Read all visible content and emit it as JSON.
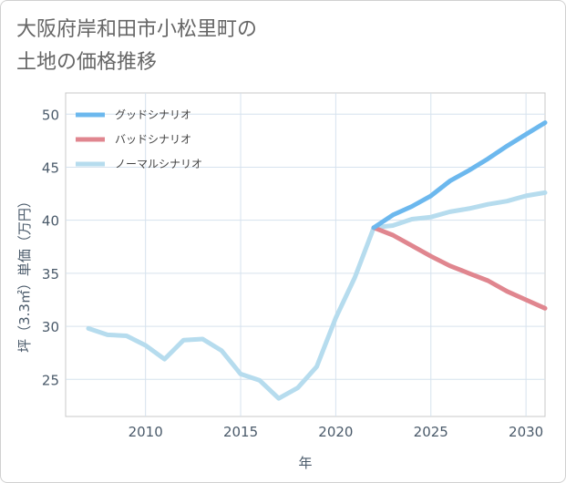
{
  "title": {
    "line1": "大阪府岸和田市小松里町の",
    "line2": "土地の価格推移"
  },
  "chart_data": {
    "type": "line",
    "title": "大阪府岸和田市小松里町の土地の価格推移",
    "xlabel": "年",
    "ylabel": "坪（3.3㎡）単価（万円）",
    "xlim": [
      2005.8,
      2031
    ],
    "ylim": [
      21.5,
      52
    ],
    "xticks": [
      2010,
      2015,
      2020,
      2025,
      2030
    ],
    "yticks": [
      25,
      30,
      35,
      40,
      45,
      50
    ],
    "grid": true,
    "legend_position": "top-left",
    "series": [
      {
        "name": "グッドシナリオ",
        "color": "#6cb8ee",
        "x": [
          2022,
          2023,
          2024,
          2025,
          2026,
          2027,
          2028,
          2029,
          2030,
          2031
        ],
        "values": [
          39.3,
          40.5,
          41.3,
          42.3,
          43.7,
          44.7,
          45.8,
          47.0,
          48.1,
          49.2
        ]
      },
      {
        "name": "バッドシナリオ",
        "color": "#e0868f",
        "x": [
          2022,
          2023,
          2024,
          2025,
          2026,
          2027,
          2028,
          2029,
          2030,
          2031
        ],
        "values": [
          39.3,
          38.6,
          37.6,
          36.6,
          35.7,
          35.0,
          34.3,
          33.3,
          32.5,
          31.7
        ]
      },
      {
        "name": "ノーマルシナリオ",
        "color": "#b6dcee",
        "x": [
          2007,
          2008,
          2009,
          2010,
          2011,
          2012,
          2013,
          2014,
          2015,
          2016,
          2017,
          2018,
          2019,
          2020,
          2021,
          2022,
          2023,
          2024,
          2025,
          2026,
          2027,
          2028,
          2029,
          2030,
          2031
        ],
        "values": [
          29.8,
          29.2,
          29.1,
          28.2,
          26.9,
          28.7,
          28.8,
          27.7,
          25.5,
          24.9,
          23.2,
          24.2,
          26.2,
          30.8,
          34.6,
          39.3,
          39.5,
          40.1,
          40.3,
          40.8,
          41.1,
          41.5,
          41.8,
          42.3,
          42.6
        ]
      }
    ]
  }
}
